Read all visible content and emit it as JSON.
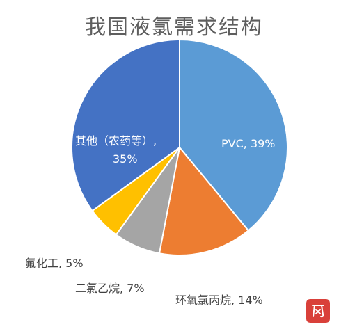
{
  "chart_data": {
    "type": "pie",
    "title": "我国液氯需求结构",
    "slices": [
      {
        "name": "PVC",
        "value": 39,
        "label": "PVC, 39%",
        "color": "#5b9bd5",
        "label_color": "#ffffff"
      },
      {
        "name": "环氧氯丙烷",
        "value": 14,
        "label": "环氧氯丙烷, 14%",
        "color": "#ed7d31",
        "label_color": "#404040"
      },
      {
        "name": "二氯乙烷",
        "value": 7,
        "label": "二氯乙烷, 7%",
        "color": "#a5a5a5",
        "label_color": "#404040"
      },
      {
        "name": "氟化工",
        "value": 5,
        "label": "氟化工, 5%",
        "color": "#ffc000",
        "label_color": "#404040"
      },
      {
        "name": "其他（农药等）",
        "value": 35,
        "label_lines": [
          "其他（农药等）,",
          "35%"
        ],
        "color": "#4472c4",
        "label_color": "#ffffff"
      }
    ],
    "start_angle_deg": 0,
    "direction": "clockwise",
    "legend": "none"
  }
}
